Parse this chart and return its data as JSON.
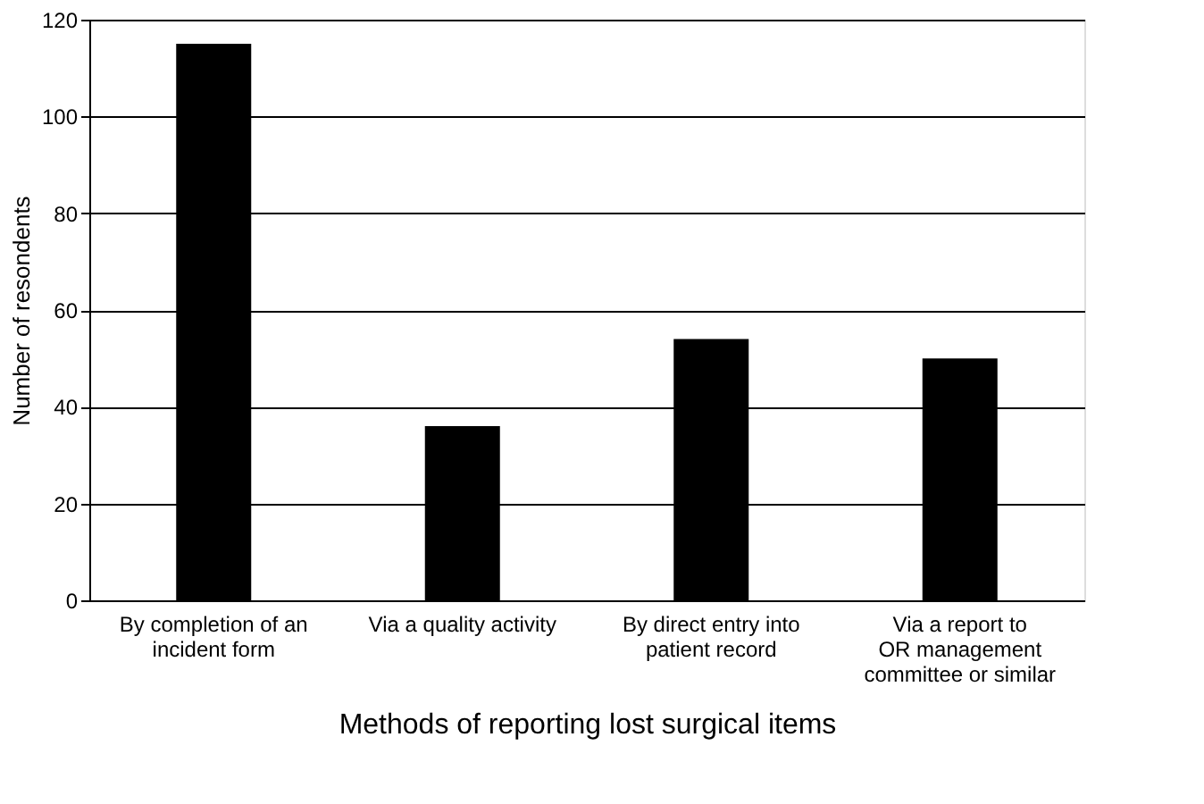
{
  "chart_data": {
    "type": "bar",
    "xlabel": "Methods of reporting lost surgical items",
    "ylabel": "Number of resondents",
    "categories": [
      "By completion of an\nincident form",
      "Via a quality activity",
      "By direct entry into\npatient record",
      "Via a report to\nOR management\ncommittee or similar"
    ],
    "values": [
      115,
      36,
      54,
      50
    ],
    "color": "#000000",
    "ylim": [
      0,
      120
    ],
    "yticks": [
      0,
      20,
      40,
      60,
      80,
      100,
      120
    ],
    "grid": "y"
  }
}
